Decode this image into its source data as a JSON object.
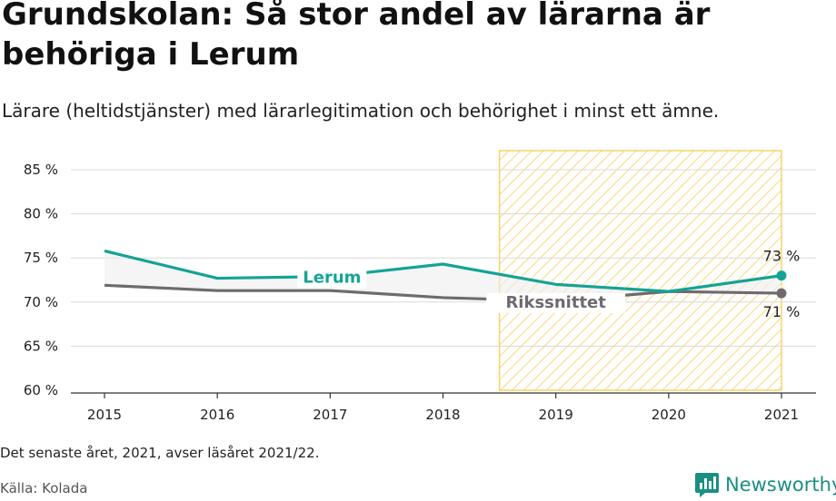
{
  "header": {
    "title": "Grundskolan: Så stor andel av lärarna är behöriga i Lerum",
    "subtitle": "Lärare (heltidstjänster) med lärarlegitimation och behörighet i minst ett ämne."
  },
  "footer": {
    "note": "Det senaste året, 2021, avser läsåret 2021/22.",
    "source": "Källa: Kolada",
    "brand": "Newsworthy"
  },
  "colors": {
    "lerum": "#14a396",
    "riket": "#6e6a6f",
    "highlight": "#f8cf5e",
    "brand": "#1b8f83"
  },
  "chart_data": {
    "type": "line",
    "x": [
      2015,
      2016,
      2017,
      2018,
      2019,
      2020,
      2021
    ],
    "ylim": [
      60,
      85
    ],
    "yticks": [
      60,
      65,
      70,
      75,
      80,
      85
    ],
    "ytick_labels": [
      "60 %",
      "65 %",
      "70 %",
      "75 %",
      "80 %",
      "85 %"
    ],
    "xtick_labels": [
      "2015",
      "2016",
      "2017",
      "2018",
      "2019",
      "2020",
      "2021"
    ],
    "highlight_range": [
      2018.5,
      2021
    ],
    "series": [
      {
        "name": "Lerum",
        "values": [
          75.8,
          72.7,
          72.9,
          74.3,
          72.0,
          71.2,
          73.0
        ],
        "end_label": "73 %"
      },
      {
        "name": "Rikssnittet",
        "values": [
          71.9,
          71.3,
          71.3,
          70.5,
          70.1,
          71.2,
          71.0
        ],
        "end_label": "71 %"
      }
    ]
  }
}
